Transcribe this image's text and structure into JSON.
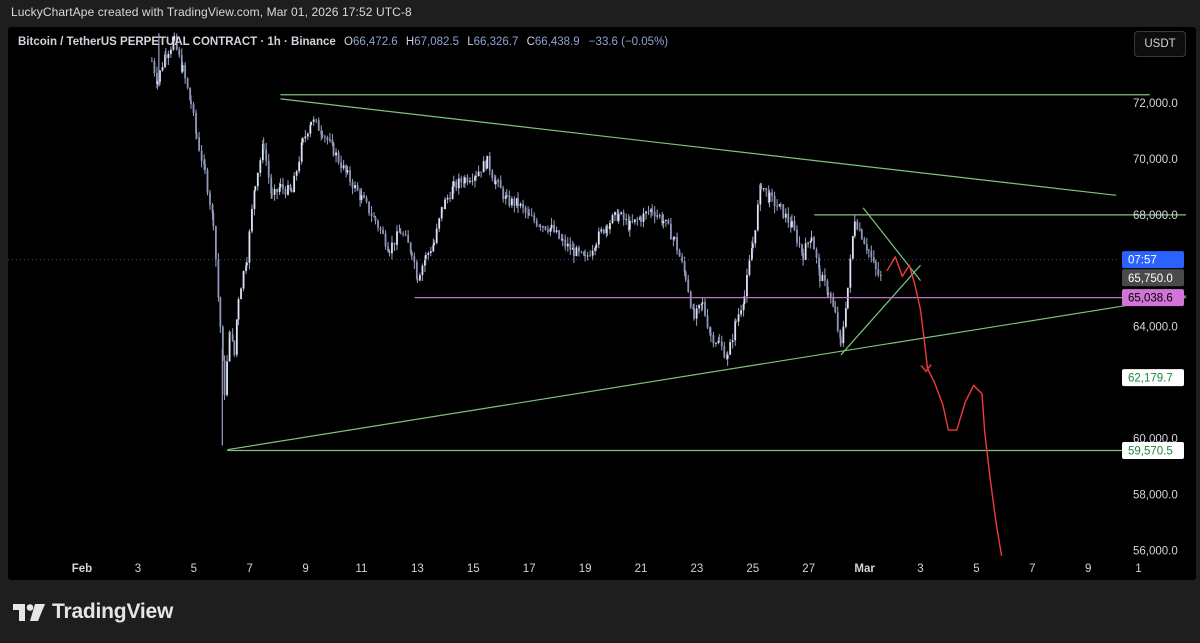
{
  "caption": "LuckyChartApe created with TradingView.com, Mar 01, 2026 17:52 UTC-8",
  "legend": {
    "symbol": "Bitcoin / TetherUS PERPETUAL CONTRACT · 1h · Binance",
    "open_label": "O",
    "open": "66,472.6",
    "high_label": "H",
    "high": "67,082.5",
    "low_label": "L",
    "low": "66,326.7",
    "close_label": "C",
    "close": "66,438.9",
    "change": "−33.6 (−0.05%)"
  },
  "currency_button": "USDT",
  "footer": {
    "brand": "TradingView"
  },
  "colors": {
    "candle": "#c5cbe3",
    "candle_wick": "#9aa3c4",
    "trendline": "#7fc27f",
    "magenta_line": "#c06ec6",
    "projection": "#ef3b3b",
    "current_price_dash": "#3d4f8a"
  },
  "chart_data": {
    "type": "candlestick",
    "y_unit": "USDT",
    "ylim": [
      55700,
      74500
    ],
    "y_ticks": [
      {
        "value": 72000,
        "label": "72,000.0"
      },
      {
        "value": 70000,
        "label": "70,000.0"
      },
      {
        "value": 68000,
        "label": "68,000.0"
      },
      {
        "value": 64000,
        "label": "64,000.0"
      },
      {
        "value": 60000,
        "label": "60,000.0"
      },
      {
        "value": 58000,
        "label": "58,000.0"
      },
      {
        "value": 56000,
        "label": "56,000.0"
      }
    ],
    "x_ticks": [
      {
        "label": "Feb",
        "day": 0,
        "bold": true
      },
      {
        "label": "3",
        "day": 2
      },
      {
        "label": "5",
        "day": 4
      },
      {
        "label": "7",
        "day": 6
      },
      {
        "label": "9",
        "day": 8
      },
      {
        "label": "11",
        "day": 10
      },
      {
        "label": "13",
        "day": 12
      },
      {
        "label": "15",
        "day": 14
      },
      {
        "label": "17",
        "day": 16
      },
      {
        "label": "19",
        "day": 18
      },
      {
        "label": "21",
        "day": 20
      },
      {
        "label": "23",
        "day": 22
      },
      {
        "label": "25",
        "day": 24
      },
      {
        "label": "27",
        "day": 26
      },
      {
        "label": "Mar",
        "day": 28,
        "bold": true
      },
      {
        "label": "3",
        "day": 30
      },
      {
        "label": "5",
        "day": 32
      },
      {
        "label": "7",
        "day": 34
      },
      {
        "label": "9",
        "day": 36
      },
      {
        "label": "1",
        "day": 37.8
      }
    ],
    "price_labels": [
      {
        "id": "countdown",
        "label": "07:57",
        "value": 66400,
        "bg": "#2962ff",
        "fg": "#ffffff"
      },
      {
        "id": "close",
        "label": "65,750.0",
        "value": 65750,
        "bg": "#4a4a4a",
        "fg": "#ffffff"
      },
      {
        "id": "magenta",
        "label": "65,038.6",
        "value": 65040,
        "bg": "#d374d9",
        "fg": "#000000"
      },
      {
        "id": "lower-wedge",
        "label": "62,179.7",
        "value": 62180,
        "bg": "#ffffff",
        "fg": "#1b8a3a"
      },
      {
        "id": "base",
        "label": "59,570.5",
        "value": 59570,
        "bg": "#ffffff",
        "fg": "#1b8a3a"
      }
    ],
    "current_price": 66400,
    "candle_anchors": [
      [
        2.5,
        73500
      ],
      [
        2.7,
        72800
      ],
      [
        3.0,
        73800
      ],
      [
        3.3,
        74200
      ],
      [
        3.6,
        73200
      ],
      [
        3.9,
        72000
      ],
      [
        4.1,
        70800
      ],
      [
        4.4,
        69500
      ],
      [
        4.7,
        67800
      ],
      [
        4.95,
        64000
      ],
      [
        5.1,
        61700
      ],
      [
        5.3,
        63900
      ],
      [
        5.45,
        63000
      ],
      [
        5.6,
        65100
      ],
      [
        5.9,
        66500
      ],
      [
        6.2,
        69200
      ],
      [
        6.5,
        70500
      ],
      [
        6.8,
        68600
      ],
      [
        7.1,
        69000
      ],
      [
        7.5,
        68800
      ],
      [
        7.9,
        70600
      ],
      [
        8.2,
        71400
      ],
      [
        8.6,
        71000
      ],
      [
        9.0,
        70300
      ],
      [
        9.5,
        69400
      ],
      [
        10.0,
        68600
      ],
      [
        10.5,
        67800
      ],
      [
        11.0,
        66800
      ],
      [
        11.4,
        67400
      ],
      [
        11.8,
        66700
      ],
      [
        12.0,
        65800
      ],
      [
        12.3,
        66500
      ],
      [
        12.6,
        67000
      ],
      [
        12.9,
        68300
      ],
      [
        13.3,
        69000
      ],
      [
        13.7,
        69300
      ],
      [
        14.1,
        69500
      ],
      [
        14.5,
        69900
      ],
      [
        14.8,
        69200
      ],
      [
        15.2,
        68500
      ],
      [
        15.6,
        68400
      ],
      [
        16.0,
        67900
      ],
      [
        16.4,
        67700
      ],
      [
        16.8,
        67500
      ],
      [
        17.2,
        67000
      ],
      [
        17.6,
        66700
      ],
      [
        18.0,
        66400
      ],
      [
        18.4,
        67100
      ],
      [
        18.8,
        67700
      ],
      [
        19.2,
        68000
      ],
      [
        19.6,
        67600
      ],
      [
        20.0,
        67900
      ],
      [
        20.4,
        68200
      ],
      [
        20.8,
        67800
      ],
      [
        21.2,
        67100
      ],
      [
        21.6,
        65800
      ],
      [
        21.9,
        64300
      ],
      [
        22.2,
        64800
      ],
      [
        22.5,
        63700
      ],
      [
        22.8,
        63400
      ],
      [
        23.1,
        62900
      ],
      [
        23.4,
        64200
      ],
      [
        23.7,
        65100
      ],
      [
        24.0,
        67000
      ],
      [
        24.3,
        69100
      ],
      [
        24.6,
        68600
      ],
      [
        25.0,
        68200
      ],
      [
        25.4,
        67600
      ],
      [
        25.8,
        66600
      ],
      [
        26.1,
        67300
      ],
      [
        26.4,
        65800
      ],
      [
        26.7,
        65300
      ],
      [
        26.95,
        64400
      ],
      [
        27.15,
        63300
      ],
      [
        27.4,
        65400
      ],
      [
        27.65,
        67900
      ],
      [
        27.9,
        67300
      ],
      [
        28.15,
        66700
      ],
      [
        28.4,
        66000
      ],
      [
        28.6,
        65700
      ]
    ],
    "trendlines": [
      {
        "name": "upper-descending-line",
        "from": [
          7.1,
          72150
        ],
        "to": [
          37.0,
          68700
        ]
      },
      {
        "name": "resistance-72k",
        "from": [
          7.1,
          72300
        ],
        "to": [
          38.2,
          72300
        ]
      },
      {
        "name": "lower-ascending-line",
        "from": [
          5.2,
          59600
        ],
        "to": [
          39.5,
          65100
        ]
      },
      {
        "name": "support-59k",
        "from": [
          5.2,
          59570
        ],
        "to": [
          37.6,
          59570
        ]
      },
      {
        "name": "range-top-68k",
        "from": [
          26.2,
          68000
        ],
        "to": [
          39.5,
          68000
        ]
      },
      {
        "name": "wedge-upper",
        "from": [
          27.95,
          68250
        ],
        "to": [
          30.0,
          65650
        ]
      },
      {
        "name": "wedge-lower",
        "from": [
          27.15,
          62990
        ],
        "to": [
          30.0,
          66200
        ]
      },
      {
        "name": "magenta-65k",
        "from": [
          11.9,
          65040
        ],
        "to": [
          39.5,
          65040
        ]
      }
    ],
    "projection_path": [
      [
        28.8,
        66000
      ],
      [
        29.1,
        66500
      ],
      [
        29.35,
        65800
      ],
      [
        29.6,
        66200
      ],
      [
        29.8,
        65500
      ],
      [
        30.0,
        64600
      ],
      [
        30.15,
        63400
      ],
      [
        30.25,
        62500
      ],
      [
        30.5,
        62000
      ],
      [
        30.8,
        61200
      ],
      [
        31.0,
        60300
      ],
      [
        31.3,
        60300
      ],
      [
        31.6,
        61300
      ],
      [
        31.9,
        61900
      ],
      [
        32.2,
        61600
      ],
      [
        32.3,
        60200
      ],
      [
        32.5,
        58500
      ],
      [
        32.7,
        57000
      ],
      [
        32.9,
        55800
      ]
    ],
    "projection_arrow_day": 30.2,
    "projection_arrow_value": 62400
  }
}
